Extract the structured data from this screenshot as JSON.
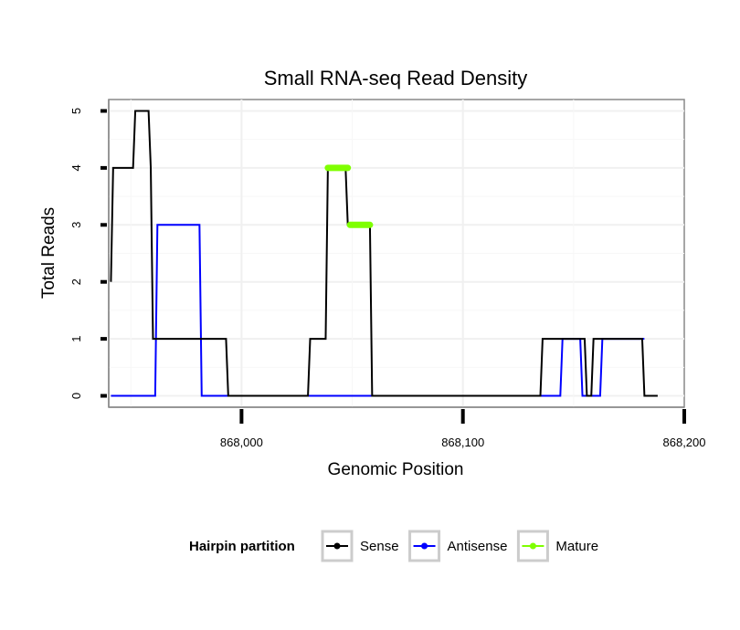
{
  "chart_data": {
    "type": "line",
    "title": "Small RNA-seq Read Density",
    "xlabel": "Genomic Position",
    "ylabel": "Total Reads",
    "xlim": [
      867940,
      868200
    ],
    "ylim": [
      -0.2,
      5.2
    ],
    "grid": true,
    "x_ticks": [
      868000,
      868100,
      868200
    ],
    "x_tick_labels": [
      "868,000",
      "868,100",
      "868,200"
    ],
    "y_ticks": [
      0,
      1,
      2,
      3,
      4,
      5
    ],
    "y_tick_labels": [
      "0",
      "1",
      "2",
      "3",
      "4",
      "5"
    ],
    "legend_title": "Hairpin partition",
    "legend_position": "bottom",
    "series": [
      {
        "name": "Sense",
        "color": "#000000",
        "x": [
          867941,
          867942,
          867951,
          867952,
          867958,
          867959,
          867960,
          867993,
          867994,
          868030,
          868031,
          868038,
          868039,
          868047,
          868048,
          868058,
          868059,
          868135,
          868136,
          868155,
          868156,
          868158,
          868159,
          868181,
          868182,
          868188
        ],
        "y": [
          2,
          4,
          4,
          5,
          5,
          4,
          1,
          1,
          0,
          0,
          1,
          1,
          4,
          4,
          3,
          3,
          0,
          0,
          1,
          1,
          0,
          0,
          1,
          1,
          0,
          0
        ]
      },
      {
        "name": "Antisense",
        "color": "#0000ff",
        "x": [
          867941,
          867961,
          867962,
          867981,
          867982,
          868144,
          868145,
          868153,
          868154,
          868162,
          868163,
          868182
        ],
        "y": [
          0,
          0,
          3,
          3,
          0,
          0,
          1,
          1,
          0,
          0,
          1,
          1
        ]
      },
      {
        "name": "Mature",
        "color": "#7fff00",
        "segments": [
          {
            "x": [
              868039,
              868048
            ],
            "y": [
              4,
              4
            ]
          },
          {
            "x": [
              868049,
              868058
            ],
            "y": [
              3,
              3
            ]
          }
        ]
      }
    ]
  }
}
